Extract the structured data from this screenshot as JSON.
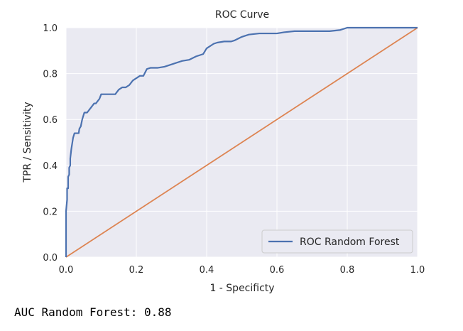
{
  "output_text": "AUC Random Forest: 0.88",
  "colors": {
    "plot_bg": "#eaeaf2",
    "grid": "#ffffff",
    "roc_line": "#4c72b0",
    "diagonal": "#dd8452",
    "text": "#262626"
  },
  "chart_data": {
    "type": "line",
    "title": "ROC Curve",
    "xlabel": "1 - Specificty",
    "ylabel": "TPR / Sensitivity",
    "xlim": [
      0,
      1
    ],
    "ylim": [
      0,
      1
    ],
    "grid": true,
    "legend_position": "lower-right",
    "x_ticks": [
      "0.0",
      "0.2",
      "0.4",
      "0.6",
      "0.8",
      "1.0"
    ],
    "y_ticks": [
      "0.0",
      "0.2",
      "0.4",
      "0.6",
      "0.8",
      "1.0"
    ],
    "series": [
      {
        "name": "ROC Random Forest",
        "color": "#4c72b0",
        "x": [
          0.0,
          0.0,
          0.003,
          0.003,
          0.006,
          0.006,
          0.009,
          0.009,
          0.012,
          0.012,
          0.015,
          0.018,
          0.02,
          0.024,
          0.03,
          0.036,
          0.038,
          0.042,
          0.046,
          0.05,
          0.052,
          0.055,
          0.06,
          0.07,
          0.08,
          0.085,
          0.095,
          0.1,
          0.11,
          0.115,
          0.12,
          0.14,
          0.145,
          0.15,
          0.16,
          0.17,
          0.18,
          0.19,
          0.2,
          0.21,
          0.22,
          0.23,
          0.24,
          0.26,
          0.28,
          0.3,
          0.31,
          0.33,
          0.35,
          0.37,
          0.38,
          0.39,
          0.4,
          0.42,
          0.43,
          0.45,
          0.47,
          0.48,
          0.5,
          0.52,
          0.55,
          0.6,
          0.62,
          0.65,
          0.7,
          0.75,
          0.78,
          0.8,
          1.0
        ],
        "y": [
          0.0,
          0.2,
          0.25,
          0.3,
          0.3,
          0.35,
          0.36,
          0.39,
          0.4,
          0.43,
          0.47,
          0.5,
          0.52,
          0.54,
          0.54,
          0.54,
          0.56,
          0.57,
          0.6,
          0.62,
          0.63,
          0.63,
          0.63,
          0.65,
          0.67,
          0.67,
          0.69,
          0.71,
          0.71,
          0.71,
          0.71,
          0.71,
          0.72,
          0.73,
          0.74,
          0.74,
          0.75,
          0.77,
          0.78,
          0.79,
          0.79,
          0.82,
          0.825,
          0.825,
          0.83,
          0.84,
          0.845,
          0.855,
          0.86,
          0.875,
          0.88,
          0.885,
          0.91,
          0.93,
          0.935,
          0.94,
          0.94,
          0.945,
          0.96,
          0.97,
          0.975,
          0.975,
          0.98,
          0.985,
          0.985,
          0.985,
          0.99,
          1.0,
          1.0
        ]
      },
      {
        "color": "#dd8452",
        "x": [
          0,
          1
        ],
        "y": [
          0,
          1
        ]
      }
    ]
  }
}
